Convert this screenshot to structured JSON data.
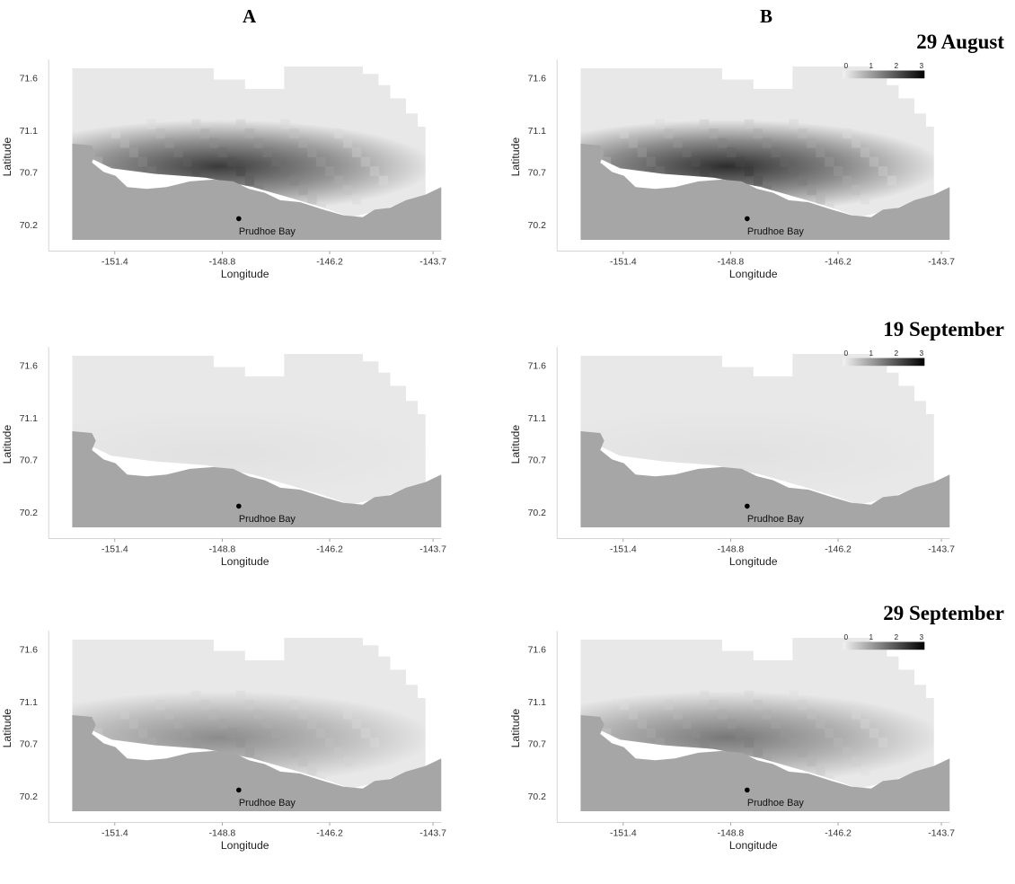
{
  "column_labels": [
    "A",
    "B"
  ],
  "dates": [
    "29 August",
    "19 September",
    "29 September"
  ],
  "place_label": "Prudhoe Bay",
  "colorbar": {
    "ticks": [
      "0",
      "1",
      "2",
      "3"
    ],
    "min": 0,
    "max": 3
  },
  "colors": {
    "land": "#a6a6a6",
    "sea_base": "#e8e8e8",
    "water_gap": "#ffffff",
    "marker": "#000000"
  },
  "map_data": {
    "type": "heatmap",
    "xlabel": "Longitude",
    "ylabel": "Latitude",
    "x_ticks": [
      "-151.4",
      "-148.8",
      "-146.2",
      "-143.7"
    ],
    "y_ticks": [
      "71.6",
      "71.1",
      "70.7",
      "70.2"
    ],
    "x_tick_values": [
      -151.4,
      -148.8,
      -146.2,
      -143.7
    ],
    "y_tick_values": [
      71.6,
      71.1,
      70.7,
      70.2
    ],
    "xlim": [
      -153.0,
      -143.5
    ],
    "ylim": [
      69.95,
      71.75
    ],
    "marker": {
      "lon": -148.4,
      "lat": 70.26
    },
    "hotspot": {
      "lon": -148.9,
      "lat": 70.76
    }
  },
  "panels": [
    {
      "column": "A",
      "date": "29 August",
      "peak_intensity": 2.6
    },
    {
      "column": "B",
      "date": "29 August",
      "peak_intensity": 2.8
    },
    {
      "column": "A",
      "date": "19 September",
      "peak_intensity": 0.1
    },
    {
      "column": "B",
      "date": "19 September",
      "peak_intensity": 0.1
    },
    {
      "column": "A",
      "date": "29 September",
      "peak_intensity": 1.4
    },
    {
      "column": "B",
      "date": "29 September",
      "peak_intensity": 1.7
    }
  ]
}
